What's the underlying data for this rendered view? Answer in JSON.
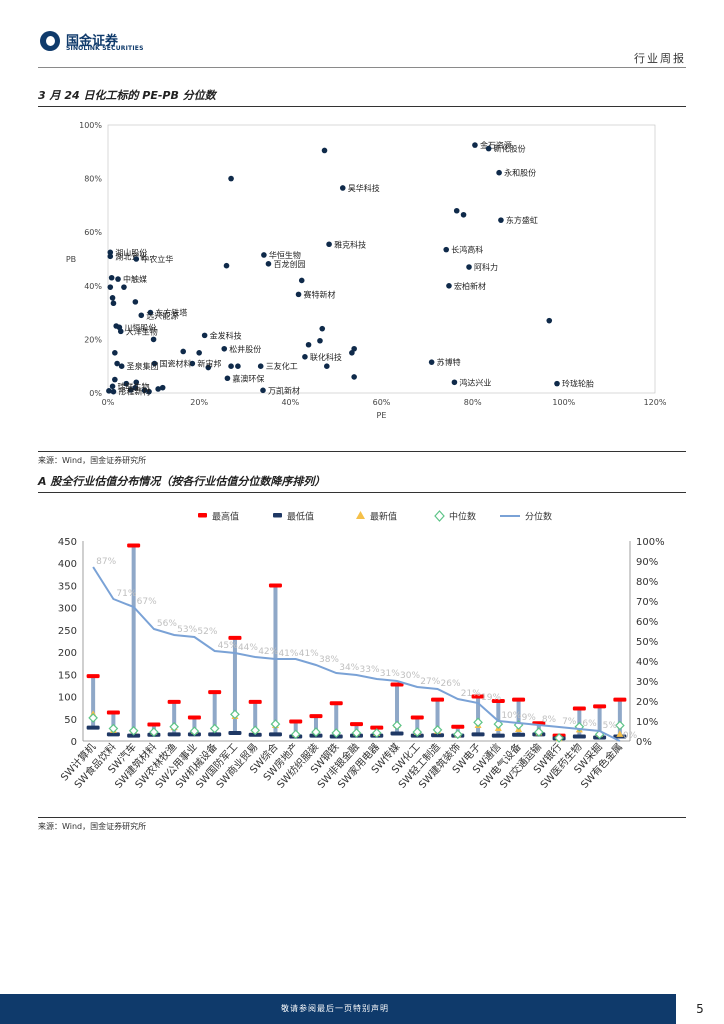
{
  "header": {
    "logo_cn": "国金证券",
    "logo_en": "SINOLINK SECURITIES",
    "report_type": "行业周报"
  },
  "section1": {
    "title": "3 月 24 日化工标的 PE-PB 分位数",
    "source": "来源：Wind，国金证券研究所"
  },
  "section2": {
    "title": "A 股全行业估值分布情况（按各行业估值分位数降序排列）",
    "source": "来源：Wind，国金证券研究所"
  },
  "footer": {
    "note": "敬请参阅最后一页特别声明",
    "page": "5"
  },
  "chart_data": [
    {
      "type": "scatter",
      "title": "3 月 24 日化工标的 PE-PB 分位数",
      "xlabel": "PE",
      "ylabel": "PB",
      "xlim": [
        0,
        1.2
      ],
      "ylim": [
        0,
        1.0
      ],
      "x_ticks": [
        "0%",
        "20%",
        "40%",
        "60%",
        "80%",
        "100%",
        "120%"
      ],
      "y_ticks": [
        "0%",
        "20%",
        "40%",
        "60%",
        "80%",
        "100%"
      ],
      "labeled_points": [
        {
          "name": "金石资源",
          "x": 0.805,
          "y": 0.925
        },
        {
          "name": "新化股份",
          "x": 0.835,
          "y": 0.912
        },
        {
          "name": "永和股份",
          "x": 0.858,
          "y": 0.822
        },
        {
          "name": "昊华科技",
          "x": 0.515,
          "y": 0.765
        },
        {
          "name": "东方盛虹",
          "x": 0.862,
          "y": 0.645
        },
        {
          "name": "雅克科技",
          "x": 0.485,
          "y": 0.555
        },
        {
          "name": "长鸿高科",
          "x": 0.742,
          "y": 0.535
        },
        {
          "name": "湖山股份",
          "x": 0.005,
          "y": 0.525
        },
        {
          "name": "湖北宜化",
          "x": 0.005,
          "y": 0.51
        },
        {
          "name": "华恒生物",
          "x": 0.342,
          "y": 0.515
        },
        {
          "name": "中农立华",
          "x": 0.062,
          "y": 0.5
        },
        {
          "name": "百龙创园",
          "x": 0.352,
          "y": 0.482
        },
        {
          "name": "阿科力",
          "x": 0.792,
          "y": 0.47
        },
        {
          "name": "中触媒",
          "x": 0.022,
          "y": 0.425
        },
        {
          "name": "宏柏新材",
          "x": 0.748,
          "y": 0.4
        },
        {
          "name": "赛特新材",
          "x": 0.418,
          "y": 0.368
        },
        {
          "name": "东方铁塔",
          "x": 0.093,
          "y": 0.3
        },
        {
          "name": "远兴能源",
          "x": 0.073,
          "y": 0.29
        },
        {
          "name": "川恒股份",
          "x": 0.025,
          "y": 0.245
        },
        {
          "name": "大洋生物",
          "x": 0.028,
          "y": 0.23
        },
        {
          "name": "金发科技",
          "x": 0.212,
          "y": 0.215
        },
        {
          "name": "松井股份",
          "x": 0.255,
          "y": 0.165
        },
        {
          "name": "联化科技",
          "x": 0.432,
          "y": 0.135
        },
        {
          "name": "新宙邦",
          "x": 0.185,
          "y": 0.11
        },
        {
          "name": "国瓷材料",
          "x": 0.102,
          "y": 0.11
        },
        {
          "name": "圣泉集团",
          "x": 0.03,
          "y": 0.1
        },
        {
          "name": "三友化工",
          "x": 0.335,
          "y": 0.1
        },
        {
          "name": "苏博特",
          "x": 0.71,
          "y": 0.115
        },
        {
          "name": "嘉澳环保",
          "x": 0.262,
          "y": 0.055
        },
        {
          "name": "鸿达兴业",
          "x": 0.76,
          "y": 0.04
        },
        {
          "name": "玲珑轮胎",
          "x": 0.985,
          "y": 0.035
        },
        {
          "name": "瑞联生物",
          "x": 0.01,
          "y": 0.025
        },
        {
          "name": "万凯新材",
          "x": 0.34,
          "y": 0.01
        },
        {
          "name": "彤程新材",
          "x": 0.012,
          "y": 0.005
        }
      ],
      "other_points": [
        [
          0.475,
          0.905
        ],
        [
          0.27,
          0.8
        ],
        [
          0.765,
          0.68
        ],
        [
          0.78,
          0.665
        ],
        [
          0.26,
          0.475
        ],
        [
          0.425,
          0.42
        ],
        [
          0.005,
          0.395
        ],
        [
          0.035,
          0.395
        ],
        [
          0.01,
          0.355
        ],
        [
          0.012,
          0.335
        ],
        [
          0.06,
          0.34
        ],
        [
          0.968,
          0.27
        ],
        [
          0.47,
          0.24
        ],
        [
          0.165,
          0.155
        ],
        [
          0.2,
          0.15
        ],
        [
          0.54,
          0.165
        ],
        [
          0.535,
          0.15
        ],
        [
          0.465,
          0.195
        ],
        [
          0.44,
          0.18
        ],
        [
          0.1,
          0.2
        ],
        [
          0.22,
          0.095
        ],
        [
          0.285,
          0.1
        ],
        [
          0.27,
          0.1
        ],
        [
          0.48,
          0.1
        ],
        [
          0.54,
          0.06
        ],
        [
          0.02,
          0.11
        ],
        [
          0.015,
          0.05
        ],
        [
          0.11,
          0.015
        ],
        [
          0.05,
          0.012
        ],
        [
          0.06,
          0.02
        ],
        [
          0.08,
          0.01
        ],
        [
          0.09,
          0.005
        ],
        [
          0.002,
          0.008
        ],
        [
          0.04,
          0.035
        ],
        [
          0.12,
          0.02
        ],
        [
          0.062,
          0.04
        ],
        [
          0.018,
          0.25
        ],
        [
          0.008,
          0.43
        ],
        [
          0.015,
          0.15
        ]
      ]
    },
    {
      "type": "bar",
      "title": "A 股全行业估值分布情况（按各行业估值分位数降序排列）",
      "legend": [
        "最高值",
        "最低值",
        "最新值",
        "中位数",
        "分位数"
      ],
      "legend_colors": [
        "#ff0000",
        "#1f3864",
        "#f5c04a",
        "#5ec488",
        "#7aa2d6"
      ],
      "range_color": "#8fa8c8",
      "y_left_range": [
        0,
        450
      ],
      "y_right_range": [
        0,
        1.0
      ],
      "y_left_ticks": [
        "0",
        "50",
        "100",
        "150",
        "200",
        "250",
        "300",
        "350",
        "400",
        "450"
      ],
      "y_right_ticks": [
        "0%",
        "10%",
        "20%",
        "30%",
        "40%",
        "50%",
        "60%",
        "70%",
        "80%",
        "90%",
        "100%"
      ],
      "categories": [
        "SW计算机",
        "SW食品饮料",
        "SW汽车",
        "SW建筑材料",
        "SW农林牧渔",
        "SW公用事业",
        "SW机械设备",
        "SW国防军工",
        "SW商业贸易",
        "SW综合",
        "SW房地产",
        "SW纺织服装",
        "SW钢铁",
        "SW非银金融",
        "SW家用电器",
        "SW传媒",
        "SW化工",
        "SW轻工制造",
        "SW建筑装饰",
        "SW电子",
        "SW通信",
        "SW电气设备",
        "SW交通运输",
        "SW银行",
        "SW医药生物",
        "SW采掘",
        "SW有色金属"
      ],
      "series": [
        {
          "name": "最高值",
          "values": [
            146,
            64,
            440,
            37,
            88,
            53,
            110,
            232,
            88,
            350,
            44,
            56,
            85,
            38,
            30,
            127,
            53,
            93,
            32,
            100,
            90,
            93,
            40,
            12,
            73,
            78,
            93
          ]
        },
        {
          "name": "最低值",
          "values": [
            30,
            15,
            12,
            14,
            15,
            15,
            15,
            18,
            14,
            15,
            10,
            12,
            10,
            12,
            12,
            17,
            12,
            13,
            12,
            15,
            12,
            14,
            15,
            6,
            10,
            8,
            10
          ]
        },
        {
          "name": "最新值",
          "values": [
            60,
            24,
            23,
            20,
            30,
            22,
            30,
            55,
            24,
            35,
            15,
            21,
            20,
            18,
            17,
            35,
            19,
            22,
            14,
            35,
            28,
            26,
            18,
            5,
            25,
            15,
            15
          ]
        },
        {
          "name": "中位数",
          "values": [
            52,
            28,
            23,
            20,
            32,
            22,
            28,
            60,
            24,
            38,
            15,
            20,
            18,
            18,
            18,
            35,
            20,
            25,
            15,
            42,
            38,
            36,
            20,
            7,
            32,
            15,
            35
          ]
        },
        {
          "name": "分位数",
          "values": [
            0.87,
            0.71,
            0.67,
            0.56,
            0.53,
            0.52,
            0.45,
            0.44,
            0.42,
            0.41,
            0.41,
            0.38,
            0.34,
            0.33,
            0.31,
            0.3,
            0.27,
            0.26,
            0.21,
            0.19,
            0.1,
            0.09,
            0.08,
            0.07,
            0.06,
            0.05,
            0.0
          ]
        }
      ],
      "percentile_labels": [
        "87%",
        "71%",
        "67%",
        "56%",
        "53%",
        "52%",
        "45%",
        "44%",
        "42%",
        "41%",
        "41%",
        "38%",
        "34%",
        "33%",
        "31%",
        "30%",
        "27%",
        "26%",
        "21%",
        "19%",
        "10%",
        "9%",
        "8%",
        "7%",
        "6%",
        "5%",
        "0%"
      ]
    }
  ]
}
